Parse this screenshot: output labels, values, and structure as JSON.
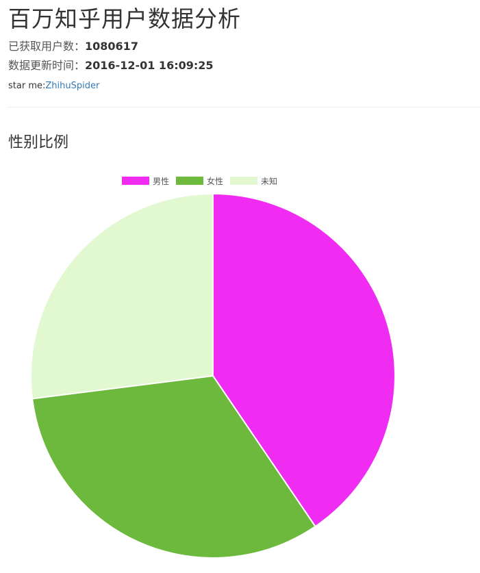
{
  "header": {
    "title": "百万知乎用户数据分析",
    "users_label": "已获取用户数：",
    "users_value": "1080617",
    "update_label": "数据更新时间：",
    "update_value": "2016-12-01 16:09:25",
    "star_prefix": "star me:",
    "star_link": "ZhihuSpider"
  },
  "section": {
    "title": "性别比例"
  },
  "chart_data": {
    "type": "pie",
    "title": "",
    "categories": [
      "男性",
      "女性",
      "未知"
    ],
    "values": [
      40.5,
      32.5,
      27.0
    ],
    "colors": [
      "#f02cf2",
      "#6db93d",
      "#e2f8d0"
    ],
    "legend_position": "top-center"
  }
}
